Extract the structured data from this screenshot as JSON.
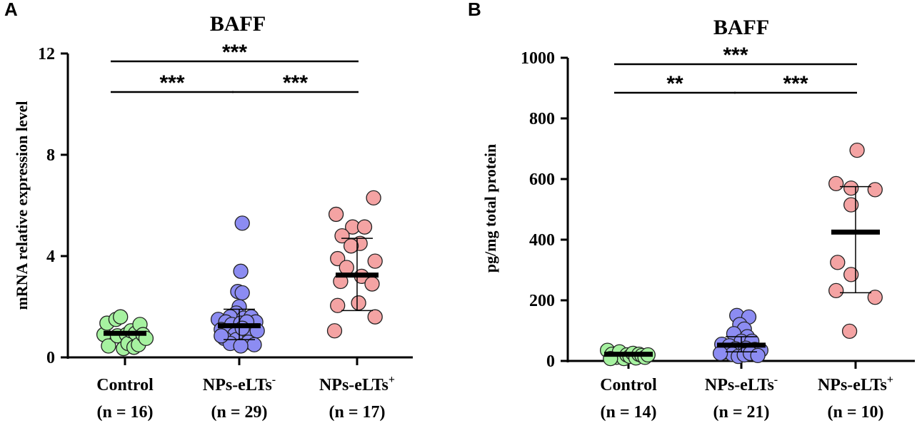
{
  "colors": {
    "control": "#a6f2a0",
    "neg": "#8c8cf2",
    "pos": "#f4a3a3",
    "ink": "#000000"
  },
  "chart_data": [
    {
      "panel": "A",
      "type": "scatter",
      "title": "BAFF",
      "ylabel": "mRNA relative expression level",
      "ylim": [
        0,
        12
      ],
      "yticks": [
        "0",
        "4",
        "8",
        "12"
      ],
      "ytick_values": [
        0,
        4,
        8,
        12
      ],
      "groups": [
        {
          "name": "Control",
          "sup": "",
          "n_label": "(n = 16)",
          "color_key": "control",
          "mean": 0.95,
          "sd_low": 0.95,
          "sd_high": 0.95,
          "points": [
            [
              -0.7,
              0.9
            ],
            [
              -0.6,
              1.35
            ],
            [
              -0.55,
              0.45
            ],
            [
              -0.3,
              1.5
            ],
            [
              -0.25,
              0.85
            ],
            [
              -0.15,
              1.6
            ],
            [
              -0.05,
              0.35
            ],
            [
              0.05,
              0.9
            ],
            [
              0.1,
              0.55
            ],
            [
              0.2,
              1.05
            ],
            [
              0.3,
              0.4
            ],
            [
              0.35,
              0.95
            ],
            [
              0.45,
              0.5
            ],
            [
              0.5,
              1.3
            ],
            [
              0.6,
              0.9
            ],
            [
              0.7,
              0.75
            ]
          ]
        },
        {
          "name": "NPs-eLTs",
          "sup": "-",
          "n_label": "(n = 29)",
          "color_key": "neg",
          "mean": 1.25,
          "sd_low": 0.7,
          "sd_high": 1.9,
          "points": [
            [
              0.1,
              5.3
            ],
            [
              0.05,
              3.4
            ],
            [
              -0.05,
              2.6
            ],
            [
              0.1,
              2.55
            ],
            [
              0,
              2.0
            ],
            [
              -0.1,
              1.75
            ],
            [
              -0.3,
              1.6
            ],
            [
              0.15,
              1.55
            ],
            [
              0.4,
              1.6
            ],
            [
              0.55,
              1.4
            ],
            [
              -0.7,
              1.5
            ],
            [
              -0.45,
              1.4
            ],
            [
              -0.25,
              1.3
            ],
            [
              0.05,
              1.35
            ],
            [
              0.25,
              1.4
            ],
            [
              -0.6,
              1.1
            ],
            [
              -0.4,
              0.95
            ],
            [
              -0.15,
              0.9
            ],
            [
              0.2,
              0.95
            ],
            [
              0.35,
              1.0
            ],
            [
              0.6,
              1.05
            ],
            [
              -0.5,
              0.75
            ],
            [
              -0.1,
              0.7
            ],
            [
              0.3,
              0.6
            ],
            [
              0.5,
              0.5
            ],
            [
              -0.3,
              0.55
            ],
            [
              0.05,
              0.45
            ],
            [
              -0.6,
              0.85
            ],
            [
              0.1,
              1.15
            ]
          ]
        },
        {
          "name": "NPs-eLTs",
          "sup": "+",
          "n_label": "(n = 17)",
          "color_key": "pos",
          "mean": 3.25,
          "sd_low": 1.85,
          "sd_high": 4.7,
          "points": [
            [
              0.55,
              6.3
            ],
            [
              -0.7,
              5.65
            ],
            [
              -0.15,
              5.15
            ],
            [
              0.25,
              5.15
            ],
            [
              -0.5,
              4.8
            ],
            [
              0.1,
              4.5
            ],
            [
              -0.2,
              4.4
            ],
            [
              -0.65,
              3.9
            ],
            [
              0.6,
              3.8
            ],
            [
              -0.35,
              3.55
            ],
            [
              0.15,
              3.2
            ],
            [
              -0.55,
              3.0
            ],
            [
              0.5,
              2.9
            ],
            [
              -0.65,
              2.05
            ],
            [
              0.05,
              2.15
            ],
            [
              0.6,
              1.6
            ],
            [
              -0.75,
              1.05
            ]
          ]
        }
      ],
      "comparisons": [
        {
          "label": "***",
          "from": 0,
          "to": 1
        },
        {
          "label": "***",
          "from": 1,
          "to": 2
        },
        {
          "label": "***",
          "from": 0,
          "to": 2
        }
      ]
    },
    {
      "panel": "B",
      "type": "scatter",
      "title": "BAFF",
      "ylabel": "pg/mg total protein",
      "ylim": [
        0,
        1000
      ],
      "yticks": [
        "0",
        "200",
        "400",
        "600",
        "800",
        "1000"
      ],
      "ytick_values": [
        0,
        200,
        400,
        600,
        800,
        1000
      ],
      "groups": [
        {
          "name": "Control",
          "sup": "",
          "n_label": "(n = 14)",
          "color_key": "control",
          "mean": 22,
          "sd_low": 22,
          "sd_high": 22,
          "points": [
            [
              -0.7,
              35
            ],
            [
              -0.55,
              22
            ],
            [
              -0.4,
              12
            ],
            [
              -0.3,
              30
            ],
            [
              -0.15,
              8
            ],
            [
              -0.05,
              20
            ],
            [
              0.05,
              15
            ],
            [
              0.15,
              25
            ],
            [
              0.25,
              10
            ],
            [
              0.35,
              22
            ],
            [
              0.45,
              18
            ],
            [
              0.55,
              12
            ],
            [
              0.65,
              20
            ],
            [
              -0.6,
              8
            ]
          ]
        },
        {
          "name": "NPs-eLTs",
          "sup": "-",
          "n_label": "(n = 21)",
          "color_key": "neg",
          "mean": 52,
          "sd_low": 30,
          "sd_high": 80,
          "points": [
            [
              -0.15,
              150
            ],
            [
              0.25,
              145
            ],
            [
              -0.05,
              120
            ],
            [
              0.1,
              105
            ],
            [
              -0.25,
              90
            ],
            [
              0.2,
              80
            ],
            [
              0,
              65
            ],
            [
              -0.65,
              55
            ],
            [
              0.35,
              65
            ],
            [
              -0.4,
              50
            ],
            [
              -0.2,
              40
            ],
            [
              0.15,
              42
            ],
            [
              0.45,
              38
            ],
            [
              0.65,
              35
            ],
            [
              -0.55,
              30
            ],
            [
              -0.3,
              22
            ],
            [
              -0.1,
              15
            ],
            [
              0.1,
              20
            ],
            [
              0.3,
              25
            ],
            [
              0.55,
              18
            ],
            [
              -0.7,
              25
            ]
          ]
        },
        {
          "name": "NPs-eLTs",
          "sup": "+",
          "n_label": "(n = 10)",
          "color_key": "pos",
          "mean": 425,
          "sd_low": 225,
          "sd_high": 575,
          "points": [
            [
              0.05,
              695
            ],
            [
              -0.65,
              585
            ],
            [
              -0.15,
              570
            ],
            [
              0.65,
              565
            ],
            [
              -0.15,
              515
            ],
            [
              -0.6,
              325
            ],
            [
              -0.15,
              285
            ],
            [
              -0.65,
              232
            ],
            [
              0.65,
              210
            ],
            [
              -0.2,
              98
            ]
          ]
        }
      ],
      "comparisons": [
        {
          "label": "**",
          "from": 0,
          "to": 1
        },
        {
          "label": "***",
          "from": 1,
          "to": 2
        },
        {
          "label": "***",
          "from": 0,
          "to": 2
        }
      ]
    }
  ]
}
